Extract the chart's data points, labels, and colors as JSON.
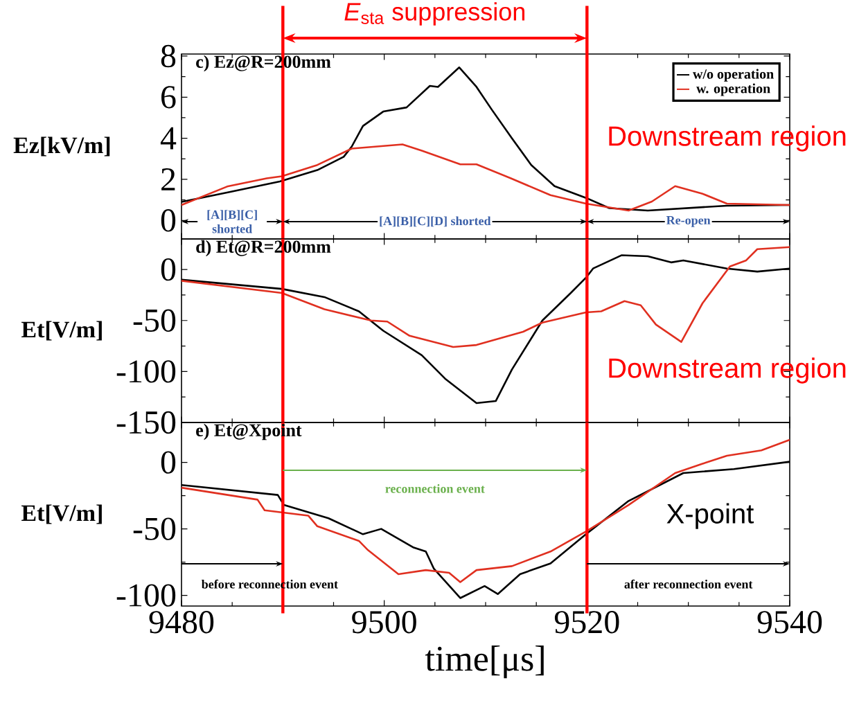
{
  "chart_data": [
    {
      "type": "line",
      "title": "c) Ez@R=200mm",
      "ylabel": "Ez[kV/m]",
      "xlim": [
        9480,
        9540
      ],
      "xticks": [
        9480,
        9500,
        9520,
        9540
      ],
      "ylim": [
        -0.9,
        8.1
      ],
      "yticks": [
        0,
        2,
        4,
        6,
        8
      ],
      "tick_labels": "y",
      "legend": "top right",
      "series": [
        {
          "name": "w/o operation",
          "color": "#000000",
          "x": [
            9480,
            9484.9,
            9489.7,
            9493.4,
            9496,
            9496.8,
            9497.9,
            9499.9,
            9502.2,
            9504.5,
            9505.3,
            9507.4,
            9509.1,
            9510.6,
            9512.6,
            9514.5,
            9516.8,
            9519.9,
            9522.2,
            9526,
            9533.8,
            9540
          ],
          "values": [
            0.9,
            1.4,
            1.9,
            2.45,
            3.1,
            3.6,
            4.6,
            5.3,
            5.5,
            6.55,
            6.5,
            7.45,
            6.5,
            5.4,
            4.0,
            2.7,
            1.67,
            1.1,
            0.6,
            0.48,
            0.72,
            0.75
          ]
        },
        {
          "name": "w. operation",
          "color": "#e03020",
          "x": [
            9480,
            9484.5,
            9488.4,
            9489.9,
            9493.4,
            9496.8,
            9501.8,
            9503.7,
            9507.5,
            9509.1,
            9512.5,
            9516.4,
            9519.9,
            9524.1,
            9526.4,
            9528.7,
            9531.4,
            9533.8,
            9540
          ],
          "values": [
            0.75,
            1.65,
            2.05,
            2.15,
            2.7,
            3.5,
            3.7,
            3.4,
            2.73,
            2.73,
            2.05,
            1.23,
            0.82,
            0.48,
            0.92,
            1.67,
            1.3,
            0.82,
            0.75
          ]
        }
      ],
      "ref_lines": [
        {
          "axis": "x",
          "value": 9490,
          "color": "#ff0000",
          "line_style": "solid"
        },
        {
          "axis": "x",
          "value": 9520,
          "color": "#ff0000",
          "line_style": "solid"
        }
      ],
      "annotations": [
        "*E*$_{sta}$ suppression",
        "[A][B][C] shorted",
        "[A][B][C][D] shorted",
        "Re-open",
        "Downstream region"
      ]
    },
    {
      "type": "line",
      "title": "d) Et@R=200mm",
      "ylabel": "Et[V/m]",
      "xlim": [
        9480,
        9540
      ],
      "xticks": [
        9480,
        9500,
        9520,
        9540
      ],
      "ylim": [
        -150,
        30
      ],
      "yticks": [
        0,
        -50,
        -100,
        -150
      ],
      "tick_labels": "y",
      "series": [
        {
          "color": "#000000",
          "x": [
            9480,
            9489.9,
            9494.1,
            9497.5,
            9499.9,
            9503.7,
            9506,
            9509.1,
            9511,
            9512.6,
            9515.6,
            9518.4,
            9519.9,
            9520.6,
            9523.4,
            9526,
            9528.3,
            9529.5,
            9533.8,
            9536.8,
            9540
          ],
          "values": [
            -10,
            -19,
            -27,
            -41,
            -60,
            -84,
            -107,
            -131,
            -129,
            -98,
            -50,
            -23,
            -8,
            1,
            14,
            13,
            7,
            9,
            1,
            -2,
            1
          ]
        },
        {
          "color": "#e03020",
          "x": [
            9480,
            9489.9,
            9494.1,
            9498.7,
            9500.3,
            9502.5,
            9506.8,
            9509.1,
            9513.7,
            9515.6,
            9519.9,
            9521.4,
            9523.7,
            9525.3,
            9526.8,
            9529.3,
            9531.4,
            9534.1,
            9535.7,
            9536.8,
            9540
          ],
          "values": [
            -11,
            -23,
            -39,
            -50,
            -51,
            -65,
            -76,
            -74,
            -61,
            -52,
            -42,
            -41,
            -31,
            -35,
            -54,
            -71,
            -33,
            3,
            9,
            20,
            22
          ]
        }
      ],
      "ref_lines": [
        {
          "axis": "x",
          "value": 9490,
          "color": "#ff0000",
          "line_style": "solid"
        },
        {
          "axis": "x",
          "value": 9520,
          "color": "#ff0000",
          "line_style": "solid"
        }
      ],
      "annotations": [
        "Downstream region"
      ]
    },
    {
      "type": "line",
      "title": "e) Et@Xpoint",
      "ylabel": "Et[V/m]",
      "xlabel": "time[μs]",
      "xlim": [
        9480,
        9540
      ],
      "xticks": [
        9480,
        9500,
        9520,
        9540
      ],
      "ylim": [
        -108,
        30
      ],
      "yticks": [
        0,
        -50,
        -100
      ],
      "series": [
        {
          "color": "#000000",
          "x": [
            9480,
            9489.5,
            9490.1,
            9494.5,
            9497.9,
            9499.7,
            9502.9,
            9504.1,
            9504.9,
            9507.5,
            9509.9,
            9511.2,
            9513.4,
            9516.4,
            9519.9,
            9524.1,
            9529.5,
            9534.5,
            9540
          ],
          "values": [
            -17,
            -24.5,
            -32,
            -42,
            -54,
            -50,
            -64,
            -67,
            -80,
            -102,
            -93,
            -99,
            -84,
            -76,
            -54,
            -29,
            -8,
            -5,
            0.5
          ]
        },
        {
          "color": "#e03020",
          "x": [
            9480,
            9487.5,
            9488.2,
            9492.5,
            9493.4,
            9497.5,
            9498.4,
            9501.4,
            9504.1,
            9506.4,
            9507.5,
            9509.1,
            9512.6,
            9516.4,
            9519.9,
            9524.1,
            9528.7,
            9531.4,
            9533.8,
            9537.2,
            9540
          ],
          "values": [
            -19,
            -28,
            -36,
            -40,
            -48,
            -59,
            -66,
            -84,
            -81,
            -83,
            -90,
            -81,
            -78,
            -67,
            -52,
            -32,
            -8,
            -1,
            5,
            9,
            17
          ]
        }
      ],
      "ref_lines": [
        {
          "axis": "x",
          "value": 9490,
          "color": "#ff0000",
          "line_style": "solid"
        },
        {
          "axis": "x",
          "value": 9520,
          "color": "#ff0000",
          "line_style": "solid"
        }
      ],
      "annotations": [
        "reconnection event",
        "before reconnection event",
        "after reconnection event",
        "X-point"
      ]
    }
  ]
}
